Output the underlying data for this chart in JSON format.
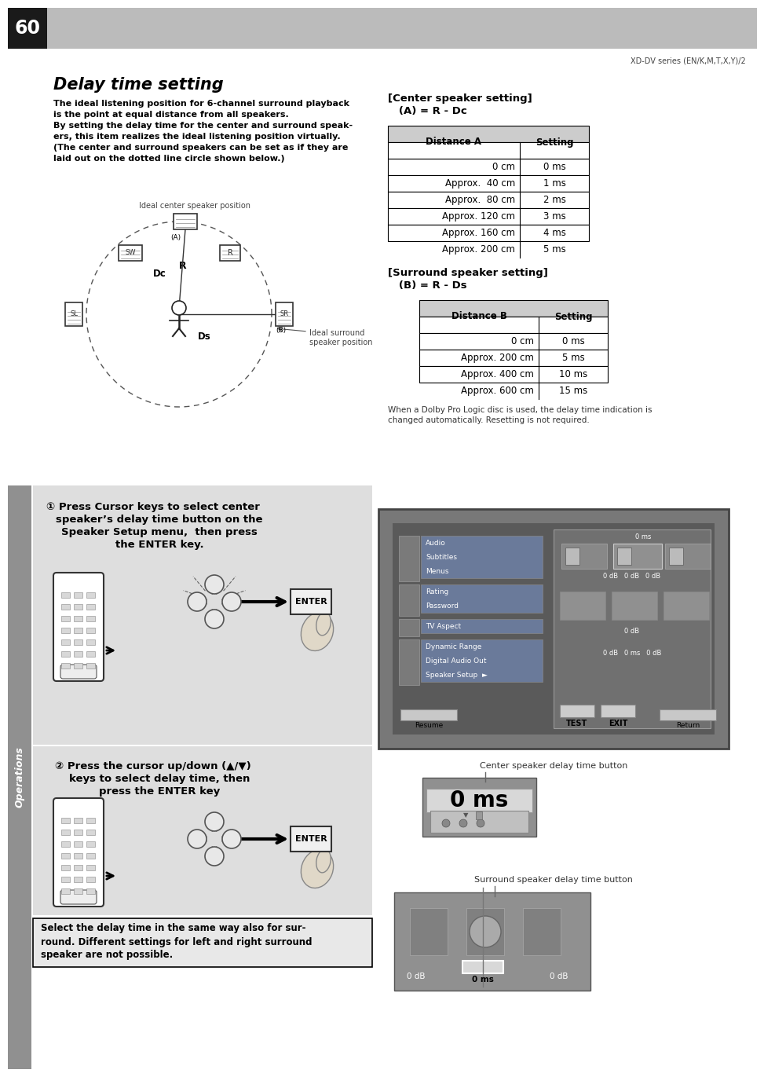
{
  "page_number": "60",
  "series_text": "XD-DV series (EN/K,M,T,X,Y)/2",
  "title": "Delay time setting",
  "body_lines": [
    "The ideal listening position for 6-channel surround playback",
    "is the point at equal distance from all speakers.",
    "By setting the delay time for the center and surround speak-",
    "ers, this item realizes the ideal listening position virtually.",
    "(The center and surround speakers can be set as if they are",
    "laid out on the dotted line circle shown below.)"
  ],
  "center_heading1": "[Center speaker setting]",
  "center_heading2": "   (A) = R - Dc",
  "center_table_headers": [
    "Distance A",
    "Setting"
  ],
  "center_table_rows": [
    [
      "0 cm",
      "0 ms"
    ],
    [
      "Approx.  40 cm",
      "1 ms"
    ],
    [
      "Approx.  80 cm",
      "2 ms"
    ],
    [
      "Approx. 120 cm",
      "3 ms"
    ],
    [
      "Approx. 160 cm",
      "4 ms"
    ],
    [
      "Approx. 200 cm",
      "5 ms"
    ]
  ],
  "surround_heading1": "[Surround speaker setting]",
  "surround_heading2": "   (B) = R - Ds",
  "surround_table_headers": [
    "Distance B",
    "Setting"
  ],
  "surround_table_rows": [
    [
      "0 cm",
      "0 ms"
    ],
    [
      "Approx. 200 cm",
      "5 ms"
    ],
    [
      "Approx. 400 cm",
      "10 ms"
    ],
    [
      "Approx. 600 cm",
      "15 ms"
    ]
  ],
  "dolby_note_line1": "When a Dolby Pro Logic disc is used, the delay time indication is",
  "dolby_note_line2": "changed automatically. Resetting is not required.",
  "ideal_center_label": "Ideal center speaker position",
  "ideal_surround_label": "Ideal surround\nspeaker position",
  "step1_lines": [
    "① Press Cursor keys to select center",
    "speaker’s delay time button on the",
    "Speaker Setup menu,  then press",
    "the ENTER key."
  ],
  "step2_lines": [
    "② Press the cursor up/down (▲/▼)",
    "keys to select delay time, then",
    "press the ENTER key"
  ],
  "select_lines": [
    "Select the delay time in the same way also for sur-",
    "round. Different settings for left and right surround",
    "speaker are not possible."
  ],
  "center_delay_caption": "Center speaker delay time button",
  "surround_delay_caption": "Surround speaker delay time button",
  "operations_label": "Operations",
  "page_bg": "#ffffff",
  "header_bg": "#bbbbbb",
  "tab_bg": "#1a1a1a",
  "step_panel_bg": "#dedede",
  "ops_sidebar_bg": "#909090",
  "table_header_bg": "#cccccc",
  "table_row_bg": "#ffffff",
  "tv_bg": "#7a7a7a",
  "tv_inner_bg": "#555555",
  "menu_item_bg": "#6a7a9a",
  "delay_display_bg": "#282828",
  "delay_text_color": "#ffffff",
  "select_box_border": "#000000"
}
